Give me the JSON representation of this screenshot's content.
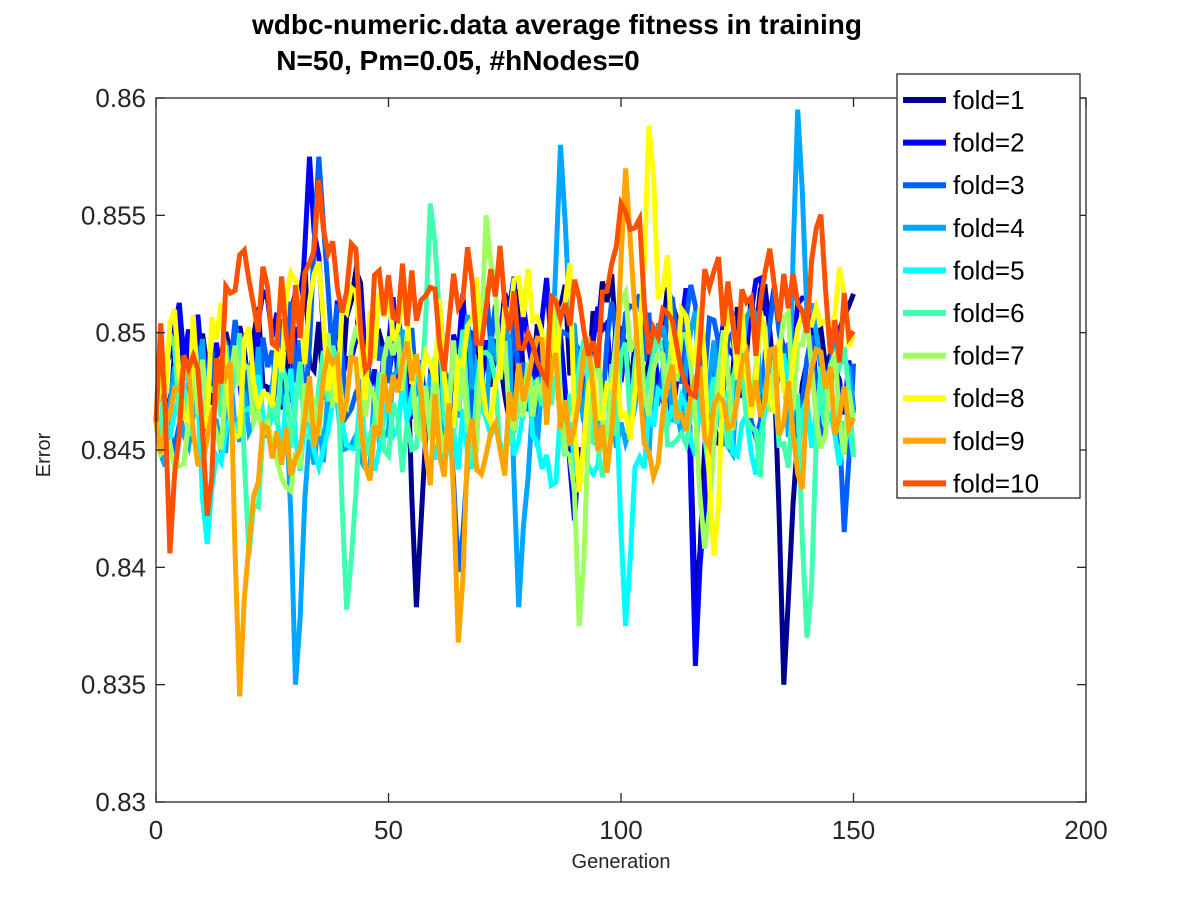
{
  "chart_data": {
    "type": "line",
    "title": "wdbc-numeric.data average fitness in training",
    "subtitle": "N=50, Pm=0.05, #hNodes=0",
    "xlabel": "Generation",
    "ylabel": "Error",
    "xlim": [
      0,
      200
    ],
    "ylim": [
      0.83,
      0.86
    ],
    "xticks": [
      "0",
      "50",
      "100",
      "150",
      "200"
    ],
    "yticks": [
      "0.83",
      "0.835",
      "0.84",
      "0.845",
      "0.85",
      "0.855",
      "0.86"
    ],
    "legend_position": "top-right",
    "x_range_of_series": [
      0,
      150
    ],
    "series": [
      {
        "name": "fold=1",
        "color": "#00008f",
        "seed": 11,
        "base": 0.8495,
        "amp": 0.0048,
        "dips": [
          [
            135,
            0.835
          ],
          [
            116,
            0.8385
          ],
          [
            56,
            0.8383
          ]
        ]
      },
      {
        "name": "fold=2",
        "color": "#0000ff",
        "seed": 23,
        "base": 0.8492,
        "amp": 0.0046,
        "dips": [
          [
            116,
            0.8358
          ],
          [
            90,
            0.842
          ],
          [
            33,
            0.8575
          ]
        ]
      },
      {
        "name": "fold=3",
        "color": "#0060ff",
        "seed": 37,
        "base": 0.8488,
        "amp": 0.0045,
        "dips": [
          [
            65,
            0.8398
          ],
          [
            148,
            0.8415
          ],
          [
            35,
            0.8575
          ]
        ]
      },
      {
        "name": "fold=4",
        "color": "#00a6ff",
        "seed": 53,
        "base": 0.8478,
        "amp": 0.005,
        "dips": [
          [
            30,
            0.835
          ],
          [
            138,
            0.8595
          ],
          [
            87,
            0.858
          ],
          [
            78,
            0.8383
          ]
        ]
      },
      {
        "name": "fold=5",
        "color": "#00ffff",
        "seed": 71,
        "base": 0.8462,
        "amp": 0.0035,
        "dips": [
          [
            101,
            0.8375
          ],
          [
            11,
            0.841
          ],
          [
            85,
            0.8435
          ]
        ]
      },
      {
        "name": "fold=6",
        "color": "#40ffb0",
        "seed": 89,
        "base": 0.847,
        "amp": 0.005,
        "dips": [
          [
            140,
            0.837
          ],
          [
            59,
            0.8555
          ],
          [
            41,
            0.8382
          ],
          [
            20,
            0.8405
          ]
        ]
      },
      {
        "name": "fold=7",
        "color": "#a0ff60",
        "seed": 97,
        "base": 0.8478,
        "amp": 0.0048,
        "dips": [
          [
            91,
            0.8375
          ],
          [
            71,
            0.855
          ],
          [
            118,
            0.8408
          ]
        ]
      },
      {
        "name": "fold=8",
        "color": "#ffff00",
        "seed": 113,
        "base": 0.8495,
        "amp": 0.005,
        "dips": [
          [
            106,
            0.8588
          ],
          [
            120,
            0.8405
          ],
          [
            91,
            0.8432
          ]
        ]
      },
      {
        "name": "fold=9",
        "color": "#ffa500",
        "seed": 131,
        "base": 0.8468,
        "amp": 0.0045,
        "dips": [
          [
            18,
            0.8345
          ],
          [
            65,
            0.8368
          ],
          [
            101,
            0.857
          ]
        ]
      },
      {
        "name": "fold=10",
        "color": "#ff5000",
        "seed": 149,
        "base": 0.8512,
        "amp": 0.0045,
        "dips": [
          [
            3,
            0.8406
          ],
          [
            11,
            0.8422
          ],
          [
            35,
            0.8565
          ],
          [
            100,
            0.8555
          ]
        ]
      }
    ]
  }
}
